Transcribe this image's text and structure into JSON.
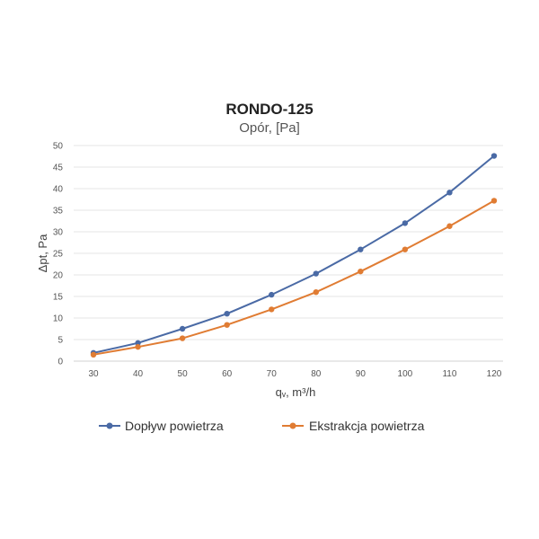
{
  "chart_data": {
    "type": "line",
    "title": "RONDO-125",
    "subtitle": "Opór, [Pa]",
    "xlabel": "qᵥ, m³/h",
    "ylabel": "Δpt, Pa",
    "x": [
      30,
      40,
      50,
      60,
      70,
      80,
      90,
      100,
      110,
      120
    ],
    "xlim": [
      30,
      120
    ],
    "ylim": [
      0,
      50
    ],
    "yticks": [
      0,
      5,
      10,
      15,
      20,
      25,
      30,
      35,
      40,
      45,
      50
    ],
    "grid": true,
    "legend_position": "bottom",
    "series": [
      {
        "name": "Dopływ powietrza",
        "color": "#4a6aa5",
        "values": [
          1.9,
          4.2,
          7.5,
          11.0,
          15.4,
          20.3,
          25.9,
          32.0,
          39.1,
          47.6
        ]
      },
      {
        "name": "Ekstrakcja powietrza",
        "color": "#e07c33",
        "values": [
          1.5,
          3.3,
          5.3,
          8.4,
          12.0,
          16.0,
          20.8,
          25.9,
          31.3,
          37.2
        ]
      }
    ]
  }
}
